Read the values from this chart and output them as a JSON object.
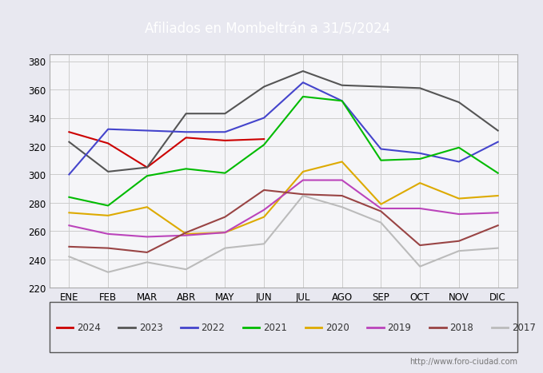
{
  "title": "Afiliados en Mombeltrán a 31/5/2024",
  "ylim": [
    220,
    385
  ],
  "yticks": [
    220,
    240,
    260,
    280,
    300,
    320,
    340,
    360,
    380
  ],
  "months": [
    "ENE",
    "FEB",
    "MAR",
    "ABR",
    "MAY",
    "JUN",
    "JUL",
    "AGO",
    "SEP",
    "OCT",
    "NOV",
    "DIC"
  ],
  "series": {
    "2024": {
      "color": "#cc0000",
      "data": [
        330,
        322,
        305,
        326,
        324,
        325,
        null,
        null,
        null,
        null,
        null,
        null
      ]
    },
    "2023": {
      "color": "#555555",
      "data": [
        323,
        302,
        305,
        343,
        343,
        362,
        373,
        363,
        362,
        361,
        351,
        331
      ]
    },
    "2022": {
      "color": "#4444cc",
      "data": [
        300,
        332,
        331,
        330,
        330,
        340,
        365,
        352,
        318,
        315,
        309,
        323
      ]
    },
    "2021": {
      "color": "#00bb00",
      "data": [
        284,
        278,
        299,
        304,
        301,
        321,
        355,
        352,
        310,
        311,
        319,
        301
      ]
    },
    "2020": {
      "color": "#ddaa00",
      "data": [
        273,
        271,
        277,
        258,
        259,
        270,
        302,
        309,
        279,
        294,
        283,
        285
      ]
    },
    "2019": {
      "color": "#bb44bb",
      "data": [
        264,
        258,
        256,
        257,
        259,
        275,
        296,
        296,
        276,
        276,
        272,
        273
      ]
    },
    "2018": {
      "color": "#994444",
      "data": [
        249,
        248,
        245,
        259,
        270,
        289,
        286,
        285,
        274,
        250,
        253,
        264
      ]
    },
    "2017": {
      "color": "#bbbbbb",
      "data": [
        242,
        231,
        238,
        233,
        248,
        251,
        285,
        277,
        266,
        235,
        246,
        248
      ]
    }
  },
  "legend_order": [
    "2024",
    "2023",
    "2022",
    "2021",
    "2020",
    "2019",
    "2018",
    "2017"
  ],
  "watermark": "http://www.foro-ciudad.com",
  "bg_color": "#e8e8f0",
  "plot_bg_color": "#f5f5f8",
  "grid_color": "#cccccc",
  "title_bg_color": "#5577aa",
  "title_font_color": "#ffffff",
  "title_fontsize": 12
}
